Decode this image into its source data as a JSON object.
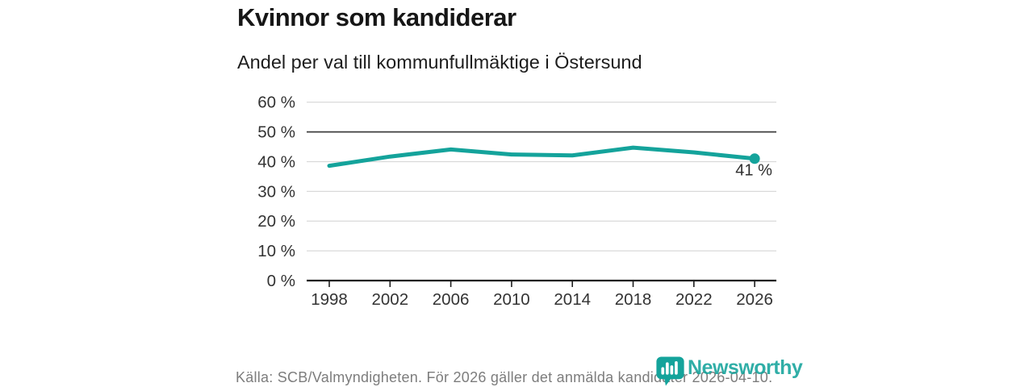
{
  "colors": {
    "accent": "#14a39b",
    "grid_light": "#d9d9d9",
    "grid_dark": "#3f3f3f",
    "axis": "#1f1f1f",
    "tick_text": "#333333",
    "muted_text": "#7d7d7d",
    "background": "#ffffff"
  },
  "chart_data": {
    "type": "line",
    "title": "Kvinnor som kandiderar",
    "subtitle": "Andel per val till kommunfullmäktige i Östersund",
    "x": [
      "1998",
      "2002",
      "2006",
      "2010",
      "2014",
      "2018",
      "2022",
      "2026"
    ],
    "series": [
      {
        "values": [
          38.6,
          41.7,
          44.1,
          42.4,
          42.1,
          44.7,
          43.1,
          41
        ]
      }
    ],
    "ylim": [
      0,
      60
    ],
    "yticks": [
      0,
      10,
      20,
      30,
      40,
      50,
      60
    ],
    "ytick_suffix": " %",
    "emphasized_gridline": 50,
    "grid": true,
    "legend": "none",
    "last_point_label": "41 %",
    "color": "#14a39b"
  },
  "footer": {
    "source_text": "Källa: SCB/Valmyndigheten. För 2026 gäller det anmälda kandidater 2026-04-10.",
    "brand_name": "Newsworthy"
  }
}
